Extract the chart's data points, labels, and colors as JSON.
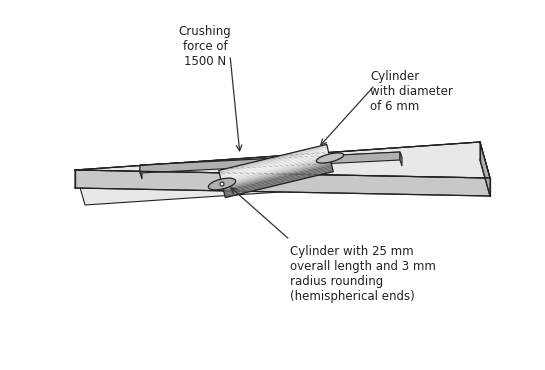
{
  "bg_color": "#ffffff",
  "plate_color_top": "#e8e8e8",
  "plate_color_side_front": "#c8c8c8",
  "plate_color_side_right": "#b0b0b0",
  "slot_color": "#a0a0a0",
  "cylinder_color_main": "#d0d0d0",
  "cylinder_color_dark": "#909090",
  "cylinder_color_light": "#f0f0f0",
  "line_color": "#222222",
  "text_color": "#222222",
  "annotation_color": "#333333",
  "annotations": {
    "crushing_force": "Crushing\nforce of\n1500 N",
    "cylinder_diam": "Cylinder\nwith diameter\nof 6 mm",
    "cylinder_length": "Cylinder with 25 mm\noverall length and 3 mm\nradius rounding\n(hemispherical ends)"
  },
  "font_size": 8.5
}
